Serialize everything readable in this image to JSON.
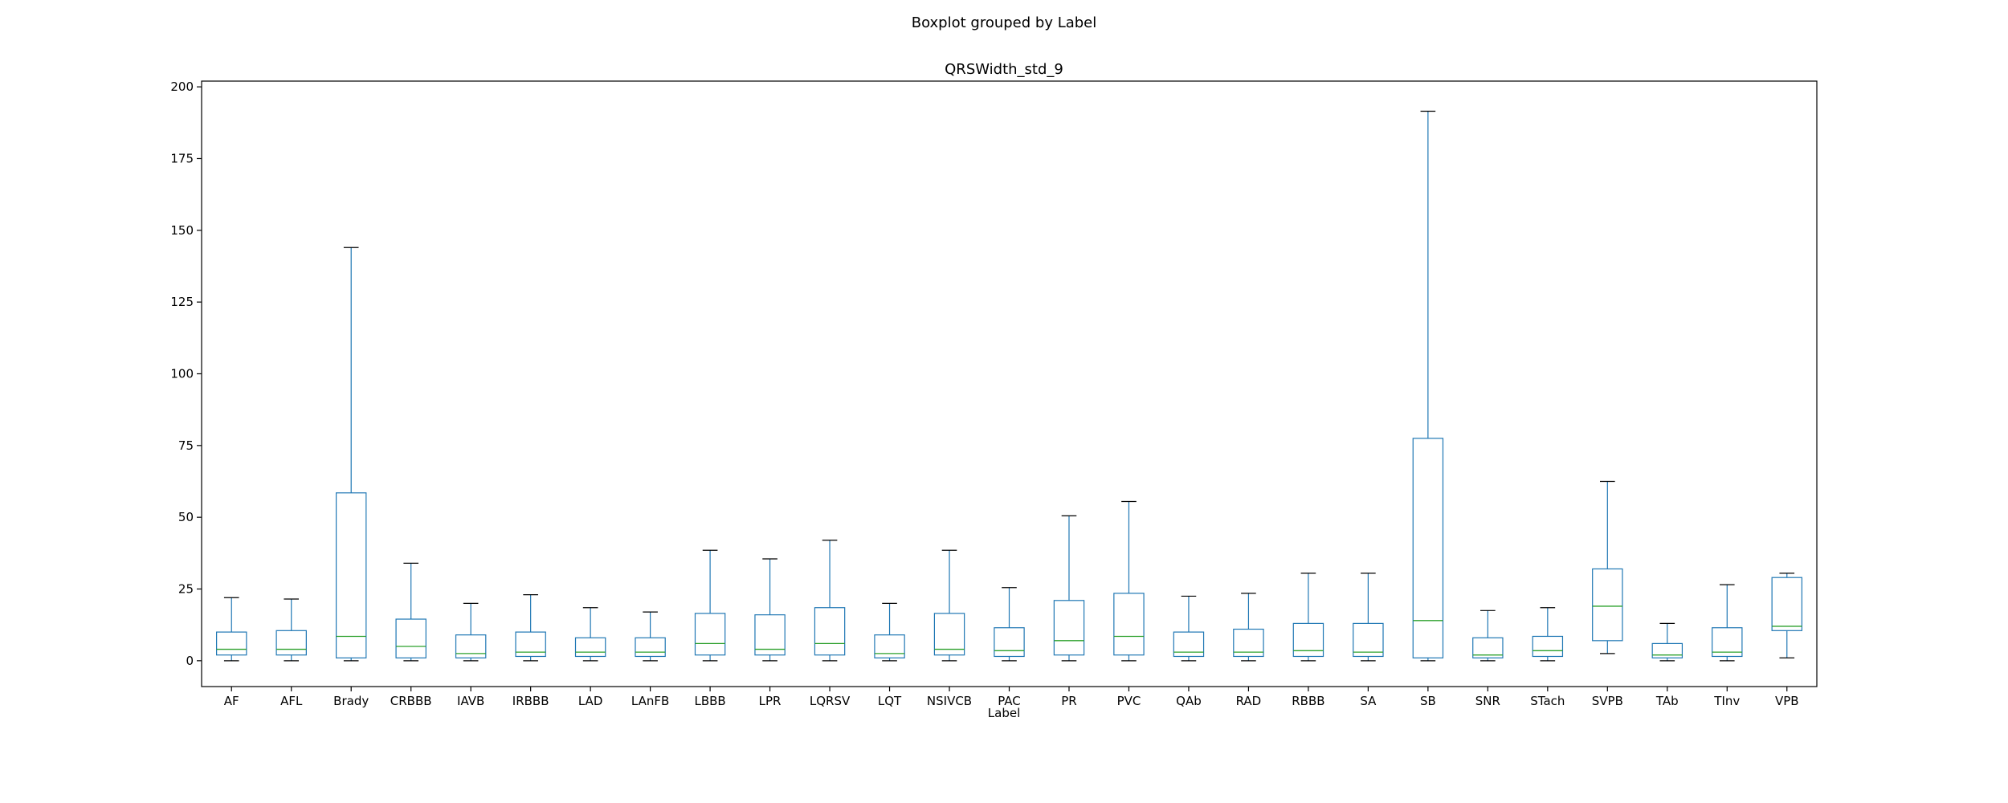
{
  "chart_data": {
    "type": "boxplot",
    "suptitle": "Boxplot grouped by Label",
    "title": "QRSWidth_std_9",
    "xlabel": "Label",
    "ylabel": "",
    "ylim": [
      -9,
      202
    ],
    "yticks": [
      0,
      25,
      50,
      75,
      100,
      125,
      150,
      175,
      200
    ],
    "grid": false,
    "colors": {
      "box": "#1f77b4",
      "median": "#2ca02c",
      "cap": "#000000",
      "frame": "#000000"
    },
    "categories": [
      "AF",
      "AFL",
      "Brady",
      "CRBBB",
      "IAVB",
      "IRBBB",
      "LAD",
      "LAnFB",
      "LBBB",
      "LPR",
      "LQRSV",
      "LQT",
      "NSIVCB",
      "PAC",
      "PR",
      "PVC",
      "QAb",
      "RAD",
      "RBBB",
      "SA",
      "SB",
      "SNR",
      "STach",
      "SVPB",
      "TAb",
      "TInv",
      "VPB"
    ],
    "boxes": [
      {
        "label": "AF",
        "whislo": 0,
        "q1": 2,
        "med": 4,
        "q3": 10,
        "whishi": 22
      },
      {
        "label": "AFL",
        "whislo": 0,
        "q1": 2,
        "med": 4,
        "q3": 10.5,
        "whishi": 21.5
      },
      {
        "label": "Brady",
        "whislo": 0,
        "q1": 1,
        "med": 8.5,
        "q3": 58.5,
        "whishi": 144
      },
      {
        "label": "CRBBB",
        "whislo": 0,
        "q1": 1,
        "med": 5,
        "q3": 14.5,
        "whishi": 34
      },
      {
        "label": "IAVB",
        "whislo": 0,
        "q1": 1,
        "med": 2.5,
        "q3": 9,
        "whishi": 20
      },
      {
        "label": "IRBBB",
        "whislo": 0,
        "q1": 1.5,
        "med": 3,
        "q3": 10,
        "whishi": 23
      },
      {
        "label": "LAD",
        "whislo": 0,
        "q1": 1.5,
        "med": 3,
        "q3": 8,
        "whishi": 18.5
      },
      {
        "label": "LAnFB",
        "whislo": 0,
        "q1": 1.5,
        "med": 3,
        "q3": 8,
        "whishi": 17
      },
      {
        "label": "LBBB",
        "whislo": 0,
        "q1": 2,
        "med": 6,
        "q3": 16.5,
        "whishi": 38.5
      },
      {
        "label": "LPR",
        "whislo": 0,
        "q1": 2,
        "med": 4,
        "q3": 16,
        "whishi": 35.5
      },
      {
        "label": "LQRSV",
        "whislo": 0,
        "q1": 2,
        "med": 6,
        "q3": 18.5,
        "whishi": 42
      },
      {
        "label": "LQT",
        "whislo": 0,
        "q1": 1,
        "med": 2.5,
        "q3": 9,
        "whishi": 20
      },
      {
        "label": "NSIVCB",
        "whislo": 0,
        "q1": 2,
        "med": 4,
        "q3": 16.5,
        "whishi": 38.5
      },
      {
        "label": "PAC",
        "whislo": 0,
        "q1": 1.5,
        "med": 3.5,
        "q3": 11.5,
        "whishi": 25.5
      },
      {
        "label": "PR",
        "whislo": 0,
        "q1": 2,
        "med": 7,
        "q3": 21,
        "whishi": 50.5
      },
      {
        "label": "PVC",
        "whislo": 0,
        "q1": 2,
        "med": 8.5,
        "q3": 23.5,
        "whishi": 55.5
      },
      {
        "label": "QAb",
        "whislo": 0,
        "q1": 1.5,
        "med": 3,
        "q3": 10,
        "whishi": 22.5
      },
      {
        "label": "RAD",
        "whislo": 0,
        "q1": 1.5,
        "med": 3,
        "q3": 11,
        "whishi": 23.5
      },
      {
        "label": "RBBB",
        "whislo": 0,
        "q1": 1.5,
        "med": 3.5,
        "q3": 13,
        "whishi": 30.5
      },
      {
        "label": "SA",
        "whislo": 0,
        "q1": 1.5,
        "med": 3,
        "q3": 13,
        "whishi": 30.5
      },
      {
        "label": "SB",
        "whislo": 0,
        "q1": 1,
        "med": 14,
        "q3": 77.5,
        "whishi": 191.5
      },
      {
        "label": "SNR",
        "whislo": 0,
        "q1": 1,
        "med": 2,
        "q3": 8,
        "whishi": 17.5
      },
      {
        "label": "STach",
        "whislo": 0,
        "q1": 1.5,
        "med": 3.5,
        "q3": 8.5,
        "whishi": 18.5
      },
      {
        "label": "SVPB",
        "whislo": 2.5,
        "q1": 7,
        "med": 19,
        "q3": 32,
        "whishi": 62.5
      },
      {
        "label": "TAb",
        "whislo": 0,
        "q1": 1,
        "med": 2,
        "q3": 6,
        "whishi": 13
      },
      {
        "label": "TInv",
        "whislo": 0,
        "q1": 1.5,
        "med": 3,
        "q3": 11.5,
        "whishi": 26.5
      },
      {
        "label": "VPB",
        "whislo": 1,
        "q1": 10.5,
        "med": 12,
        "q3": 29,
        "whishi": 30.5
      }
    ]
  }
}
